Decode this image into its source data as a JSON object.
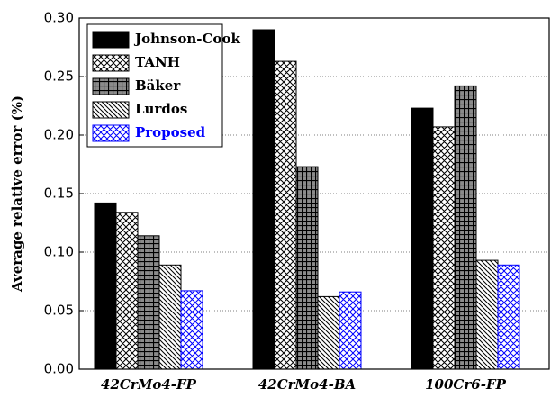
{
  "chart_data": {
    "type": "bar",
    "y_label": "Average relative error (%)",
    "categories": [
      "42CrMo4-FP",
      "42CrMo4-BA",
      "100Cr6-FP"
    ],
    "series": [
      {
        "name": "Johnson-Cook",
        "color": "#000000",
        "pattern": "solid",
        "values": [
          0.142,
          0.29,
          0.223
        ]
      },
      {
        "name": "TANH",
        "color": "#000000",
        "pattern": "cross",
        "values": [
          0.134,
          0.263,
          0.207
        ]
      },
      {
        "name": "Bäker",
        "color": "#000000",
        "pattern": "grid",
        "values": [
          0.114,
          0.173,
          0.242
        ]
      },
      {
        "name": "Lurdos",
        "color": "#000000",
        "pattern": "diagonal",
        "values": [
          0.089,
          0.062,
          0.093
        ]
      },
      {
        "name": "Proposed",
        "color": "#0000ff",
        "pattern": "cross",
        "values": [
          0.067,
          0.066,
          0.089
        ]
      }
    ],
    "ylim": [
      0,
      0.3
    ],
    "yticks": [
      {
        "value": 0,
        "label": "0.00"
      },
      0.05,
      {
        "value": 0.1,
        "label": "0.10"
      },
      0.15,
      {
        "value": 0.2,
        "label": "0.20"
      },
      0.25,
      {
        "value": 0.3,
        "label": "0.30"
      }
    ],
    "grid": true,
    "legend": "upper left"
  }
}
